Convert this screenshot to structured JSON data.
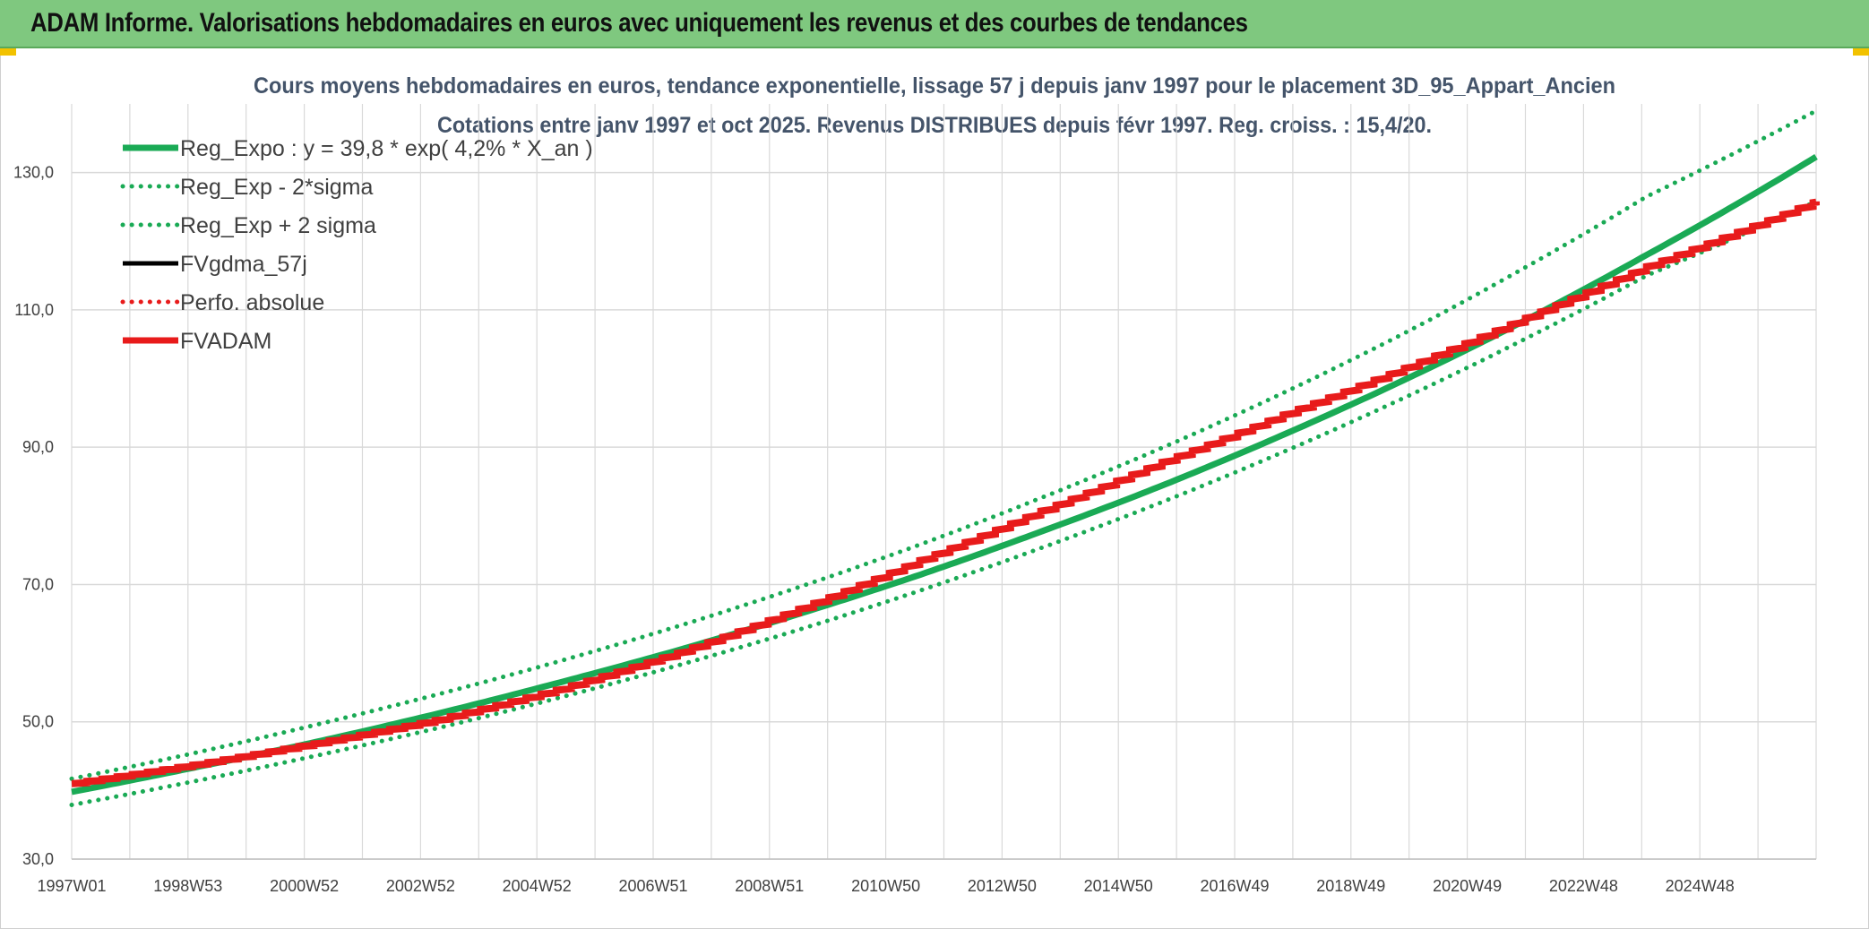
{
  "banner": {
    "title": "ADAM Informe. Valorisations hebdomadaires en euros avec uniquement les revenus et des courbes de tendances"
  },
  "colors": {
    "banner_bg": "#7fc87f",
    "reg_green": "#1aaa55",
    "fvadam_red": "#e81b1b",
    "title_text": "#44546a",
    "grid": "#d9d9d9"
  },
  "chart_data": {
    "type": "line",
    "title": "Cours moyens hebdomadaires en euros, tendance exponentielle, lissage 57 j depuis janv 1997 pour le placement 3D_95_Appart_Ancien",
    "subtitle": "Cotations entre janv 1997 et oct 2025. Revenus DISTRIBUES depuis févr 1997. Reg. croiss. : 15,4/20.",
    "xlabel": "",
    "ylabel": "",
    "ylim": [
      30,
      140
    ],
    "yticks": [
      30,
      50,
      70,
      90,
      110,
      130
    ],
    "ytick_labels": [
      "30,0",
      "50,0",
      "70,0",
      "90,0",
      "110,0",
      "130,0"
    ],
    "xlim": [
      1997.0,
      2025.8
    ],
    "xtick_labels": [
      "1997W01",
      "1998W53",
      "2000W52",
      "2002W52",
      "2004W52",
      "2006W51",
      "2008W51",
      "2010W50",
      "2012W50",
      "2014W50",
      "2016W49",
      "2018W49",
      "2020W49",
      "2022W48",
      "2024W48"
    ],
    "grid": true,
    "legend_position": "top-left",
    "series": [
      {
        "name": "Reg_Expo : y = 39,8 * exp( 4,2% *  X_an )",
        "style": "solid-thick",
        "color": "#1aaa55",
        "x": [
          1997.0,
          1999.0,
          2001.0,
          2003.0,
          2005.0,
          2007.0,
          2009.0,
          2011.0,
          2013.0,
          2015.0,
          2017.0,
          2019.0,
          2021.0,
          2023.0,
          2025.8
        ],
        "y": [
          39.8,
          43.3,
          47.0,
          51.1,
          55.6,
          60.4,
          65.7,
          71.4,
          77.7,
          84.4,
          91.8,
          99.8,
          108.5,
          118.0,
          132.3
        ]
      },
      {
        "name": "Reg_Exp - 2*sigma",
        "style": "dotted",
        "color": "#1aaa55",
        "x": [
          1997.0,
          1999.0,
          2001.0,
          2003.0,
          2005.0,
          2007.0,
          2009.0,
          2011.0,
          2013.0,
          2015.0,
          2017.0,
          2019.0,
          2021.0,
          2023.0,
          2025.8
        ],
        "y": [
          37.9,
          41.3,
          45.0,
          49.0,
          53.4,
          58.2,
          63.4,
          69.1,
          75.3,
          82.0,
          89.3,
          97.2,
          105.8,
          115.0,
          125.8
        ]
      },
      {
        "name": "Reg_Exp + 2 sigma",
        "style": "dotted",
        "color": "#1aaa55",
        "x": [
          1997.0,
          1999.0,
          2001.0,
          2003.0,
          2005.0,
          2007.0,
          2009.0,
          2011.0,
          2013.0,
          2015.0,
          2017.0,
          2019.0,
          2021.0,
          2023.0,
          2025.8
        ],
        "y": [
          41.7,
          45.4,
          49.5,
          53.9,
          58.7,
          63.9,
          69.6,
          75.8,
          82.6,
          89.9,
          97.9,
          106.6,
          116.2,
          126.5,
          139.0
        ]
      },
      {
        "name": "FVgdma_57j",
        "style": "solid",
        "color": "#000000",
        "x": [],
        "y": []
      },
      {
        "name": "Perfo. absolue",
        "style": "dotted",
        "color": "#e81b1b",
        "x": [],
        "y": []
      },
      {
        "name": "FVADAM",
        "style": "stepped-thick",
        "color": "#e81b1b",
        "x": [
          1997.0,
          1999.0,
          2001.0,
          2003.0,
          2005.0,
          2007.0,
          2009.0,
          2011.0,
          2013.0,
          2015.0,
          2017.0,
          2019.0,
          2021.0,
          2023.0,
          2025.8
        ],
        "y": [
          41.0,
          43.7,
          46.8,
          50.2,
          54.6,
          60.0,
          66.4,
          73.5,
          80.7,
          87.8,
          94.7,
          101.5,
          108.8,
          116.3,
          125.8
        ]
      }
    ]
  }
}
